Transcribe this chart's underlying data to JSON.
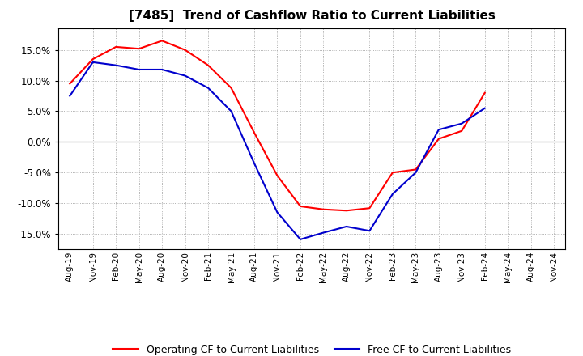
{
  "title": "[7485]  Trend of Cashflow Ratio to Current Liabilities",
  "x_labels": [
    "Aug-19",
    "Nov-19",
    "Feb-20",
    "May-20",
    "Aug-20",
    "Nov-20",
    "Feb-21",
    "May-21",
    "Aug-21",
    "Nov-21",
    "Feb-22",
    "May-22",
    "Aug-22",
    "Nov-22",
    "Feb-23",
    "May-23",
    "Aug-23",
    "Nov-23",
    "Feb-24",
    "May-24",
    "Aug-24",
    "Nov-24"
  ],
  "operating_cf": [
    9.5,
    13.5,
    15.5,
    15.2,
    16.5,
    15.0,
    12.5,
    8.8,
    1.5,
    -5.5,
    -10.5,
    -11.0,
    -11.2,
    -10.8,
    -5.0,
    -4.5,
    0.5,
    1.8,
    8.0,
    null,
    null,
    null
  ],
  "free_cf": [
    7.5,
    13.0,
    12.5,
    11.8,
    11.8,
    10.8,
    8.8,
    5.0,
    -3.5,
    -11.5,
    -15.9,
    -14.8,
    -13.8,
    -14.5,
    -8.5,
    -5.0,
    2.0,
    3.0,
    5.5,
    null,
    null,
    null
  ],
  "operating_color": "#FF0000",
  "free_color": "#0000CD",
  "ylim": [
    -17.5,
    18.5
  ],
  "yticks": [
    -15,
    -10,
    -5,
    0,
    5,
    10,
    15
  ],
  "background_color": "#FFFFFF",
  "grid_color": "#AAAAAA",
  "legend_op": "Operating CF to Current Liabilities",
  "legend_free": "Free CF to Current Liabilities"
}
